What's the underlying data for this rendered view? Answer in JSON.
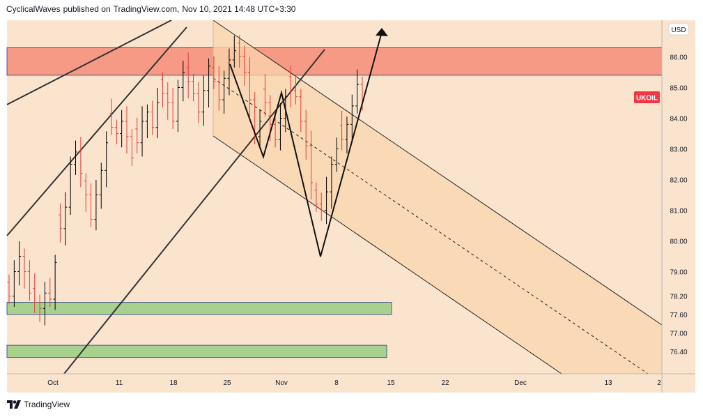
{
  "header": {
    "author": "CyclicalWaves",
    "published_text": "published on",
    "site": "TradingView.com,",
    "datetime": "Nov 10, 2021 14:48 UTC+3:30"
  },
  "footer": {
    "brand": "TradingView",
    "logo_icon": "tradingview-logo-icon"
  },
  "colors": {
    "background": "#fbe4ce",
    "resistance_zone": "#f79a85",
    "support_zone": "#a9d18e",
    "channel_fill": "#fad5ad",
    "up_candle": "#000000",
    "down_candle": "#e53935",
    "price_label": "#f23645"
  },
  "chart_data": {
    "type": "candlestick",
    "symbol_label": "UKOIL",
    "currency": "USD",
    "last_price": 84.6,
    "y_ticks": [
      "86.00",
      "85.00",
      "84.00",
      "83.00",
      "82.00",
      "81.00",
      "80.00",
      "79.00",
      "78.20",
      "77.60",
      "77.00",
      "76.40"
    ],
    "y_tick_values": [
      86.0,
      85.0,
      84.0,
      83.0,
      82.0,
      81.0,
      80.0,
      79.0,
      78.2,
      77.6,
      77.0,
      76.4
    ],
    "x_ticks": [
      "Oct",
      "11",
      "18",
      "25",
      "Nov",
      "8",
      "15",
      "22",
      "Dec",
      "13",
      "2"
    ],
    "ylim": [
      75.9,
      87.0
    ],
    "closes": [
      78.2,
      79.0,
      79.5,
      79.0,
      78.3,
      78.0,
      77.8,
      78.3,
      78.1,
      79.3,
      80.4,
      81.1,
      82.5,
      82.9,
      82.2,
      81.5,
      80.7,
      81.5,
      82.3,
      83.2,
      83.7,
      83.5,
      83.9,
      83.4,
      82.7,
      83.2,
      83.9,
      84.2,
      83.7,
      84.5,
      84.8,
      84.5,
      83.9,
      85.0,
      85.5,
      85.2,
      84.8,
      84.2,
      84.9,
      85.7,
      85.2,
      84.6,
      85.3,
      85.9,
      86.2,
      86.0,
      85.5,
      84.6,
      83.4,
      83.9,
      84.5,
      83.8,
      83.3,
      84.0,
      84.7,
      84.9,
      84.7,
      83.9,
      83.1,
      81.9,
      81.2,
      81.0,
      81.6,
      82.5,
      83.0,
      83.3,
      83.8,
      84.4,
      85.1,
      84.6
    ],
    "annotations": {
      "resistance_zone": [
        85.4,
        86.3
      ],
      "support_zones": [
        [
          77.6,
          78.0
        ],
        [
          76.2,
          76.6
        ]
      ],
      "descending_channel": "parallel channel with dashed midline",
      "projected_path": "zigzag W pattern with arrow pointing up"
    }
  }
}
